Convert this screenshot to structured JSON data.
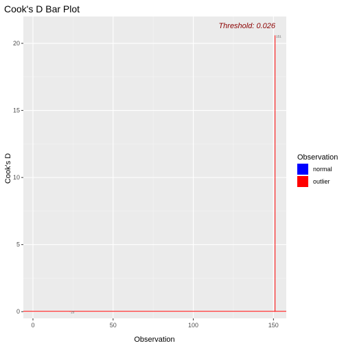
{
  "chart_data": {
    "type": "bar",
    "title": "Cook's D Bar Plot",
    "xlabel": "Observation",
    "ylabel": "Cook's D",
    "xlim": [
      -6,
      158
    ],
    "ylim": [
      -0.5,
      22
    ],
    "x_ticks": [
      0,
      50,
      100,
      150
    ],
    "x_tick_labels": [
      "0",
      "50",
      "100",
      "150"
    ],
    "y_ticks": [
      0,
      5,
      10,
      15,
      20
    ],
    "y_tick_labels": [
      "0",
      "5",
      "10",
      "15",
      "20"
    ],
    "x_minor_ticks": [
      25,
      75,
      125
    ],
    "y_minor_ticks": [
      2.5,
      7.5,
      12.5,
      17.5
    ],
    "grid": true,
    "threshold": {
      "label": "Threshold: 0.026",
      "value": 0.026
    },
    "legend": {
      "title": "Observation",
      "position": "right",
      "entries": [
        {
          "label": "normal",
          "color": "#0000ff"
        },
        {
          "label": "outlier",
          "color": "#ff0000"
        }
      ]
    },
    "bars": [
      {
        "x": 23,
        "value": 0.03,
        "group": "outlier",
        "label": "23"
      },
      {
        "x": 151,
        "value": 20.6,
        "group": "outlier",
        "label": "151"
      }
    ],
    "colors": {
      "panel": "#ebebeb",
      "grid_major": "#ffffff",
      "grid_minor": "#f4f4f4",
      "threshold": "#8b0000",
      "outlier": "#ff0000",
      "normal": "#0000ff",
      "axis_text": "#4d4d4d",
      "title_text": "#000000"
    }
  }
}
